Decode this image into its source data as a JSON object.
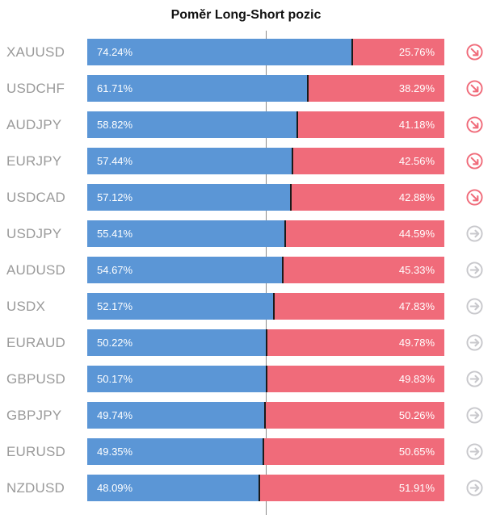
{
  "title": "Poměr Long-Short pozic",
  "colors": {
    "long": "#5b96d6",
    "short": "#f06b7a",
    "icon_active": "#f06b7a",
    "icon_neutral": "#c8c8cc"
  },
  "chart_data": {
    "type": "bar",
    "orientation": "horizontal",
    "stacked": true,
    "title": "Poměr Long-Short pozic",
    "categories": [
      "XAUUSD",
      "USDCHF",
      "AUDJPY",
      "EURJPY",
      "USDCAD",
      "USDJPY",
      "AUDUSD",
      "USDX",
      "EURAUD",
      "GBPUSD",
      "GBPJPY",
      "EURUSD",
      "NZDUSD"
    ],
    "series": [
      {
        "values": [
          74.24,
          61.71,
          58.82,
          57.44,
          57.12,
          55.41,
          54.67,
          52.17,
          50.22,
          50.17,
          49.74,
          49.35,
          48.09
        ]
      },
      {
        "values": [
          25.76,
          38.29,
          41.18,
          42.56,
          42.88,
          44.59,
          45.33,
          47.83,
          49.78,
          49.83,
          50.26,
          50.65,
          51.91
        ]
      }
    ],
    "long_labels": [
      "74.24%",
      "61.71%",
      "58.82%",
      "57.44%",
      "57.12%",
      "55.41%",
      "54.67%",
      "52.17%",
      "50.22%",
      "50.17%",
      "49.74%",
      "49.35%",
      "48.09%"
    ],
    "short_labels": [
      "25.76%",
      "38.29%",
      "41.18%",
      "42.56%",
      "42.88%",
      "44.59%",
      "45.33%",
      "47.83%",
      "49.78%",
      "49.83%",
      "50.26%",
      "50.65%",
      "51.91%"
    ],
    "signal_icons": [
      "arrow-down-right-icon",
      "arrow-down-right-icon",
      "arrow-down-right-icon",
      "arrow-down-right-icon",
      "arrow-down-right-icon",
      "arrow-right-icon",
      "arrow-right-icon",
      "arrow-right-icon",
      "arrow-right-icon",
      "arrow-right-icon",
      "arrow-right-icon",
      "arrow-right-icon",
      "arrow-right-icon"
    ],
    "reference_line": 50,
    "xlim": [
      0,
      100
    ],
    "grid": false,
    "legend": "none"
  }
}
